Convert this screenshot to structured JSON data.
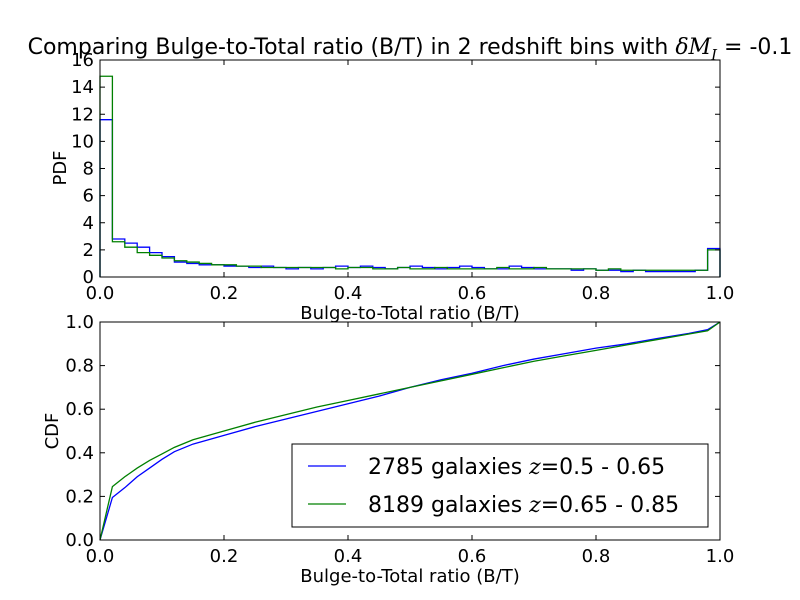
{
  "chart_data": [
    {
      "type": "line",
      "plot_style": "step-histogram",
      "title": "Comparing Bulge-to-Total ratio (B/T) in 2 redshift bins with δM_I = -0.1",
      "title_prefix": "Comparing Bulge-to-Total ratio (B/T) in 2 redshift bins with ",
      "title_symbol": "δM",
      "title_subscript": "I",
      "title_suffix": " = -0.1",
      "xlabel": "Bulge-to-Total ratio (B/T)",
      "ylabel": "PDF",
      "xlim": [
        0,
        1
      ],
      "ylim": [
        0,
        16
      ],
      "xticks": [
        "0.0",
        "0.2",
        "0.4",
        "0.6",
        "0.8",
        "1.0"
      ],
      "yticks": [
        "0",
        "2",
        "4",
        "6",
        "8",
        "10",
        "12",
        "14",
        "16"
      ],
      "grid": false,
      "bin_width": 0.02,
      "series": [
        {
          "color": "#0000ff",
          "values": [
            11.6,
            2.8,
            2.5,
            2.2,
            1.8,
            1.5,
            1.1,
            1.0,
            0.9,
            0.9,
            0.8,
            0.8,
            0.7,
            0.8,
            0.7,
            0.6,
            0.7,
            0.6,
            0.7,
            0.8,
            0.7,
            0.8,
            0.7,
            0.6,
            0.7,
            0.8,
            0.7,
            0.6,
            0.7,
            0.8,
            0.7,
            0.6,
            0.6,
            0.8,
            0.7,
            0.6,
            0.6,
            0.6,
            0.5,
            0.6,
            0.5,
            0.5,
            0.4,
            0.5,
            0.4,
            0.4,
            0.4,
            0.4,
            0.5,
            2.1
          ]
        },
        {
          "color": "#008000",
          "values": [
            14.8,
            2.6,
            2.2,
            1.8,
            1.6,
            1.4,
            1.2,
            1.1,
            1.0,
            0.9,
            0.9,
            0.8,
            0.8,
            0.7,
            0.7,
            0.7,
            0.7,
            0.7,
            0.7,
            0.6,
            0.7,
            0.7,
            0.6,
            0.6,
            0.7,
            0.6,
            0.6,
            0.7,
            0.6,
            0.6,
            0.6,
            0.6,
            0.7,
            0.6,
            0.6,
            0.7,
            0.6,
            0.6,
            0.6,
            0.6,
            0.5,
            0.6,
            0.5,
            0.5,
            0.5,
            0.5,
            0.5,
            0.5,
            0.5,
            2.0
          ]
        }
      ]
    },
    {
      "type": "line",
      "xlabel": "Bulge-to-Total ratio (B/T)",
      "ylabel": "CDF",
      "xlim": [
        0,
        1
      ],
      "ylim": [
        0,
        1
      ],
      "xticks": [
        "0.0",
        "0.2",
        "0.4",
        "0.6",
        "0.8",
        "1.0"
      ],
      "yticks": [
        "0.0",
        "0.2",
        "0.4",
        "0.6",
        "0.8",
        "1.0"
      ],
      "grid": false,
      "legend_position": "lower-right",
      "series": [
        {
          "name": "2785 galaxies z=0.5 - 0.65",
          "legend_count": "2785 galaxies ",
          "legend_var": "z",
          "legend_range": "=0.5 - 0.65",
          "color": "#0000ff",
          "x": [
            0,
            0.02,
            0.04,
            0.06,
            0.08,
            0.1,
            0.12,
            0.15,
            0.2,
            0.25,
            0.3,
            0.35,
            0.4,
            0.45,
            0.5,
            0.55,
            0.6,
            0.65,
            0.7,
            0.75,
            0.8,
            0.85,
            0.9,
            0.95,
            0.98,
            1.0
          ],
          "y": [
            0,
            0.195,
            0.24,
            0.29,
            0.33,
            0.37,
            0.405,
            0.44,
            0.48,
            0.52,
            0.555,
            0.59,
            0.625,
            0.66,
            0.7,
            0.735,
            0.765,
            0.8,
            0.83,
            0.855,
            0.88,
            0.9,
            0.925,
            0.948,
            0.965,
            1.0
          ]
        },
        {
          "name": "8189 galaxies z=0.65 - 0.85",
          "legend_count": "8189 galaxies ",
          "legend_var": "z",
          "legend_range": "=0.65 - 0.85",
          "color": "#008000",
          "x": [
            0,
            0.02,
            0.04,
            0.06,
            0.08,
            0.1,
            0.12,
            0.15,
            0.2,
            0.25,
            0.3,
            0.35,
            0.4,
            0.45,
            0.5,
            0.55,
            0.6,
            0.65,
            0.7,
            0.75,
            0.8,
            0.85,
            0.9,
            0.95,
            0.98,
            1.0
          ],
          "y": [
            0,
            0.245,
            0.29,
            0.33,
            0.365,
            0.395,
            0.425,
            0.46,
            0.5,
            0.54,
            0.575,
            0.61,
            0.64,
            0.67,
            0.7,
            0.73,
            0.76,
            0.79,
            0.82,
            0.845,
            0.87,
            0.895,
            0.92,
            0.945,
            0.96,
            1.0
          ]
        }
      ]
    }
  ]
}
